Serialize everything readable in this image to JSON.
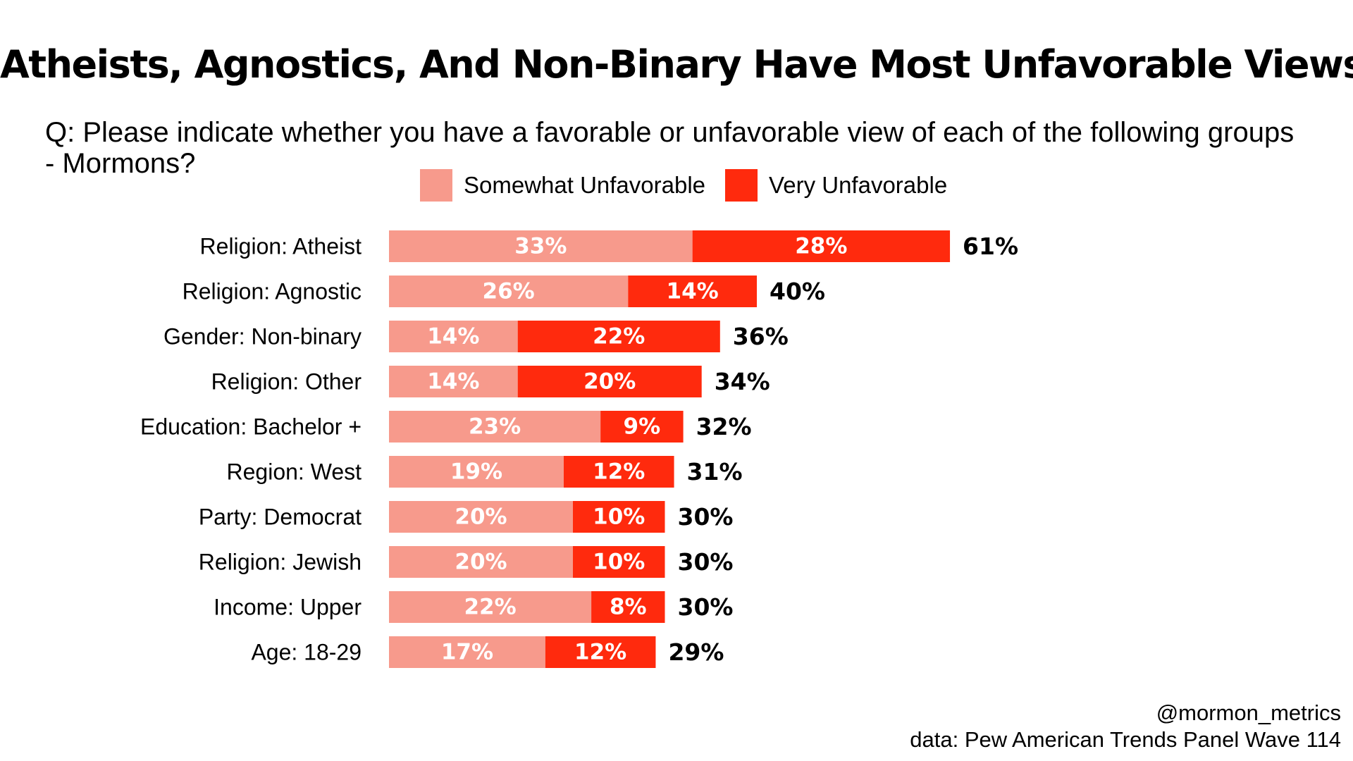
{
  "colors": {
    "somewhat": "#F79A8C",
    "very": "#FF2A0D",
    "text": "#000000",
    "background": "#FFFFFF"
  },
  "chart_data": {
    "type": "bar",
    "orientation": "horizontal",
    "stacked": true,
    "title": "Atheists, Agnostics, And Non-Binary Have Most Unfavorable Views",
    "subtitle": "Q: Please indicate whether you have a favorable or unfavorable view of each of the following groups - Mormons?",
    "legend": [
      "Somewhat Unfavorable",
      "Very Unfavorable"
    ],
    "legend_position": "top",
    "xlim": [
      0,
      100
    ],
    "grid": false,
    "categories": [
      "Religion: Atheist",
      "Religion: Agnostic",
      "Gender: Non-binary",
      "Religion: Other",
      "Education: Bachelor +",
      "Region: West",
      "Party: Democrat",
      "Religion: Jewish",
      "Income: Upper",
      "Age: 18-29"
    ],
    "series": [
      {
        "name": "Somewhat Unfavorable",
        "values": [
          33,
          26,
          14,
          14,
          23,
          19,
          20,
          20,
          22,
          17
        ]
      },
      {
        "name": "Very Unfavorable",
        "values": [
          28,
          14,
          22,
          20,
          9,
          12,
          10,
          10,
          8,
          12
        ]
      }
    ],
    "totals": [
      61,
      40,
      36,
      34,
      32,
      31,
      30,
      30,
      30,
      29
    ],
    "value_suffix": "%"
  },
  "footer": {
    "handle": "@mormon_metrics",
    "source": "data: Pew American Trends Panel Wave 114"
  }
}
